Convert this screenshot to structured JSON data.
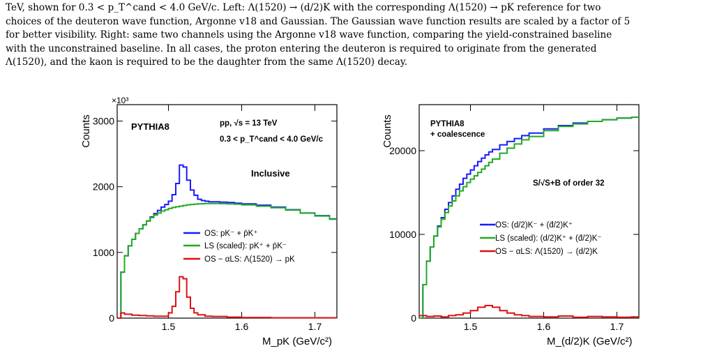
{
  "caption": {
    "line1": "TeV, shown for 0.3 < p_T^cand < 4.0 GeV/c. Left: Λ(1520) → (d/2)K with the corresponding Λ(1520) → pK reference for two",
    "line2": "choices of the deuteron wave function, Argonne v18 and Gaussian. The Gaussian wave function results are scaled by a factor of 5",
    "line3": "for better visibility. Right: same two channels using the Argonne v18 wave function, comparing the yield-constrained baseline",
    "line4": "with the unconstrained baseline. In all cases, the proton entering the deuteron is required to originate from the generated",
    "line5": "Λ(1520), and the kaon is required to be the daughter from the same Λ(1520) decay."
  },
  "chart_data": [
    {
      "type": "line",
      "xlabel": "M_pK (GeV/c²)",
      "ylabel": "Counts",
      "y_multiplier": "×10³",
      "xlim": [
        1.43,
        1.73
      ],
      "ylim": [
        0,
        3250
      ],
      "x_ticks": [
        "1.5",
        "1.6",
        "1.7"
      ],
      "y_ticks": [
        "0",
        "1000",
        "2000",
        "3000"
      ],
      "annotations": [
        "PYTHIA8",
        "pp, √s = 13 TeV",
        "0.3 < p_T^cand < 4.0 GeV/c",
        "Inclusive"
      ],
      "legend_position": "center-right",
      "series": [
        {
          "name": "OS: pK⁻ + p̄K⁺",
          "color": "#1a1aff",
          "x": [
            1.43,
            1.435,
            1.44,
            1.445,
            1.45,
            1.455,
            1.46,
            1.465,
            1.47,
            1.475,
            1.48,
            1.485,
            1.49,
            1.495,
            1.5,
            1.505,
            1.51,
            1.515,
            1.52,
            1.525,
            1.53,
            1.535,
            1.54,
            1.545,
            1.55,
            1.555,
            1.56,
            1.57,
            1.58,
            1.59,
            1.6,
            1.62,
            1.64,
            1.66,
            1.68,
            1.7,
            1.72
          ],
          "values": [
            0,
            700,
            950,
            1100,
            1200,
            1290,
            1360,
            1420,
            1480,
            1540,
            1590,
            1640,
            1690,
            1730,
            1780,
            1880,
            2050,
            2330,
            2300,
            2100,
            1950,
            1870,
            1810,
            1790,
            1780,
            1770,
            1770,
            1765,
            1760,
            1750,
            1740,
            1720,
            1690,
            1650,
            1600,
            1560,
            1510
          ]
        },
        {
          "name": "LS (scaled): pK⁺ + p̄K⁻",
          "color": "#22aa22",
          "x": [
            1.43,
            1.435,
            1.44,
            1.445,
            1.45,
            1.455,
            1.46,
            1.465,
            1.47,
            1.475,
            1.48,
            1.485,
            1.49,
            1.495,
            1.5,
            1.505,
            1.51,
            1.515,
            1.52,
            1.525,
            1.53,
            1.535,
            1.54,
            1.545,
            1.55,
            1.555,
            1.56,
            1.57,
            1.58,
            1.59,
            1.6,
            1.62,
            1.64,
            1.66,
            1.68,
            1.7,
            1.72
          ],
          "values": [
            0,
            700,
            950,
            1100,
            1200,
            1290,
            1360,
            1420,
            1480,
            1530,
            1570,
            1600,
            1630,
            1650,
            1670,
            1685,
            1695,
            1705,
            1715,
            1725,
            1730,
            1735,
            1740,
            1742,
            1745,
            1745,
            1745,
            1743,
            1740,
            1735,
            1725,
            1705,
            1680,
            1645,
            1600,
            1555,
            1505
          ]
        },
        {
          "name": "OS − αLS: Λ(1520) → pK",
          "color": "#dd1111",
          "x": [
            1.43,
            1.435,
            1.44,
            1.45,
            1.46,
            1.47,
            1.48,
            1.49,
            1.5,
            1.505,
            1.51,
            1.515,
            1.52,
            1.525,
            1.53,
            1.535,
            1.54,
            1.55,
            1.56,
            1.58,
            1.6,
            1.62,
            1.64,
            1.66,
            1.68,
            1.7,
            1.72
          ],
          "values": [
            0,
            80,
            60,
            45,
            40,
            35,
            30,
            30,
            80,
            180,
            400,
            630,
            600,
            320,
            150,
            80,
            50,
            30,
            25,
            15,
            10,
            10,
            5,
            5,
            5,
            5,
            5
          ]
        }
      ]
    },
    {
      "type": "line",
      "xlabel": "M_(d/2)K (GeV/c²)",
      "ylabel": "Counts",
      "xlim": [
        1.43,
        1.73
      ],
      "ylim": [
        0,
        25500
      ],
      "x_ticks": [
        "1.5",
        "1.6",
        "1.7"
      ],
      "y_ticks": [
        "0",
        "10000",
        "20000"
      ],
      "annotations": [
        "PYTHIA8",
        "+ coalescence",
        "S/√S+B of order 32"
      ],
      "legend_position": "center-right",
      "series": [
        {
          "name": "OS: (d/2)K⁻ + (d̄/2)K⁺",
          "color": "#1a1aff",
          "x": [
            1.43,
            1.435,
            1.44,
            1.445,
            1.45,
            1.455,
            1.46,
            1.465,
            1.47,
            1.475,
            1.48,
            1.485,
            1.49,
            1.495,
            1.5,
            1.505,
            1.51,
            1.515,
            1.52,
            1.525,
            1.53,
            1.54,
            1.55,
            1.56,
            1.57,
            1.58,
            1.6,
            1.62,
            1.64,
            1.66,
            1.68,
            1.7,
            1.72
          ],
          "values": [
            0,
            4000,
            6800,
            8500,
            9800,
            11000,
            12000,
            13000,
            13800,
            14600,
            15400,
            16000,
            16700,
            17200,
            17700,
            18200,
            18700,
            19100,
            19500,
            19850,
            20150,
            20700,
            21100,
            21450,
            21800,
            22100,
            22600,
            23000,
            23300,
            23500,
            23700,
            23900,
            24000
          ]
        },
        {
          "name": "LS (scaled): (d/2)K⁺ + (d̄/2)K⁻",
          "color": "#22aa22",
          "x": [
            1.43,
            1.435,
            1.44,
            1.445,
            1.45,
            1.455,
            1.46,
            1.465,
            1.47,
            1.475,
            1.48,
            1.485,
            1.49,
            1.495,
            1.5,
            1.505,
            1.51,
            1.515,
            1.52,
            1.525,
            1.53,
            1.54,
            1.55,
            1.56,
            1.57,
            1.58,
            1.6,
            1.62,
            1.64,
            1.66,
            1.68,
            1.7,
            1.72
          ],
          "values": [
            0,
            4000,
            6800,
            8500,
            9800,
            10900,
            11800,
            12600,
            13400,
            14000,
            14600,
            15200,
            15700,
            16200,
            16600,
            17000,
            17400,
            17800,
            18200,
            18600,
            19000,
            19700,
            20300,
            20800,
            21300,
            21700,
            22400,
            22900,
            23200,
            23500,
            23700,
            23900,
            24000
          ]
        },
        {
          "name": "OS − αLS: Λ(1520) → (d/2)K",
          "color": "#dd1111",
          "x": [
            1.43,
            1.44,
            1.45,
            1.46,
            1.47,
            1.48,
            1.49,
            1.5,
            1.51,
            1.52,
            1.53,
            1.54,
            1.55,
            1.56,
            1.57,
            1.58,
            1.6,
            1.62,
            1.64,
            1.66,
            1.68,
            1.7,
            1.72
          ],
          "values": [
            300,
            200,
            250,
            150,
            300,
            400,
            600,
            900,
            1300,
            1500,
            1300,
            900,
            600,
            400,
            300,
            200,
            150,
            250,
            100,
            200,
            150,
            100,
            150
          ]
        }
      ]
    }
  ]
}
